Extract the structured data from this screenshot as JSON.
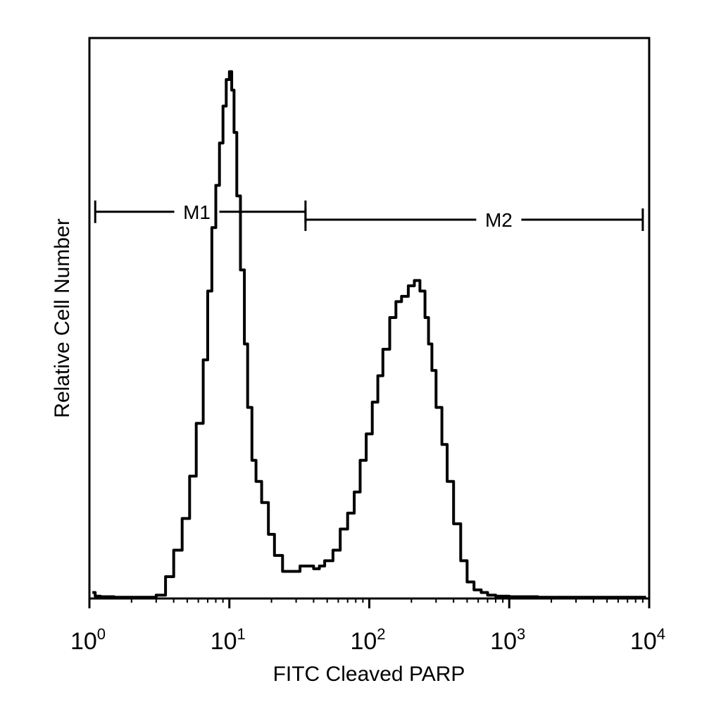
{
  "chart_data": {
    "type": "line",
    "title": "",
    "xlabel": "FITC Cleaved PARP",
    "ylabel": "Relative Cell Number",
    "x_scale": "log",
    "xlim": [
      1,
      10000
    ],
    "ylim": [
      0,
      1
    ],
    "grid": false,
    "legend": "none",
    "x_ticks": [
      {
        "value": 1,
        "base": "10",
        "exp": "0"
      },
      {
        "value": 10,
        "base": "10",
        "exp": "1"
      },
      {
        "value": 100,
        "base": "10",
        "exp": "2"
      },
      {
        "value": 1000,
        "base": "10",
        "exp": "3"
      },
      {
        "value": 10000,
        "base": "10",
        "exp": "4"
      }
    ],
    "series": [
      {
        "x": [
          1.05,
          1.1,
          1.2,
          1.5,
          2,
          2.6,
          3.0,
          3.5,
          4.0,
          4.6,
          5.2,
          5.8,
          6.5,
          7.0,
          7.5,
          8.0,
          8.5,
          9.0,
          9.5,
          10.0,
          10.4,
          10.8,
          11.3,
          12.0,
          12.8,
          13.5,
          14.5,
          15.5,
          17.0,
          19.0,
          21.0,
          24.0,
          28.0,
          32.0,
          36.0,
          40.0,
          44.0,
          48.0,
          55.0,
          62.0,
          70.0,
          78.0,
          86.0,
          95.0,
          105.0,
          115.0,
          125.0,
          140.0,
          155.0,
          170.0,
          190.0,
          210.0,
          230.0,
          250.0,
          265.0,
          280.0,
          300.0,
          330.0,
          360.0,
          400.0,
          450.0,
          500.0,
          560.0,
          630.0,
          700.0,
          800.0,
          1000.0,
          1300.0,
          1600.0,
          2500.0,
          5000.0,
          9500.0
        ],
        "y": [
          0.01,
          0.003,
          0.002,
          0.001,
          0.001,
          0.001,
          0.005,
          0.04,
          0.09,
          0.15,
          0.23,
          0.33,
          0.45,
          0.58,
          0.7,
          0.78,
          0.86,
          0.93,
          0.98,
          0.995,
          0.96,
          0.88,
          0.76,
          0.62,
          0.48,
          0.36,
          0.26,
          0.22,
          0.18,
          0.12,
          0.08,
          0.05,
          0.05,
          0.06,
          0.06,
          0.055,
          0.06,
          0.07,
          0.09,
          0.13,
          0.16,
          0.2,
          0.26,
          0.31,
          0.37,
          0.42,
          0.47,
          0.53,
          0.56,
          0.57,
          0.59,
          0.6,
          0.58,
          0.53,
          0.48,
          0.43,
          0.36,
          0.29,
          0.22,
          0.14,
          0.07,
          0.03,
          0.015,
          0.01,
          0.005,
          0.003,
          0.002,
          0.002,
          0.001,
          0.001,
          0.001,
          0.001
        ]
      }
    ],
    "markers": [
      {
        "label": "M1",
        "x_start": 1.1,
        "x_end": 35.0,
        "y": 0.73
      },
      {
        "label": "M2",
        "x_start": 35.0,
        "x_end": 9000.0,
        "y": 0.715
      }
    ]
  }
}
